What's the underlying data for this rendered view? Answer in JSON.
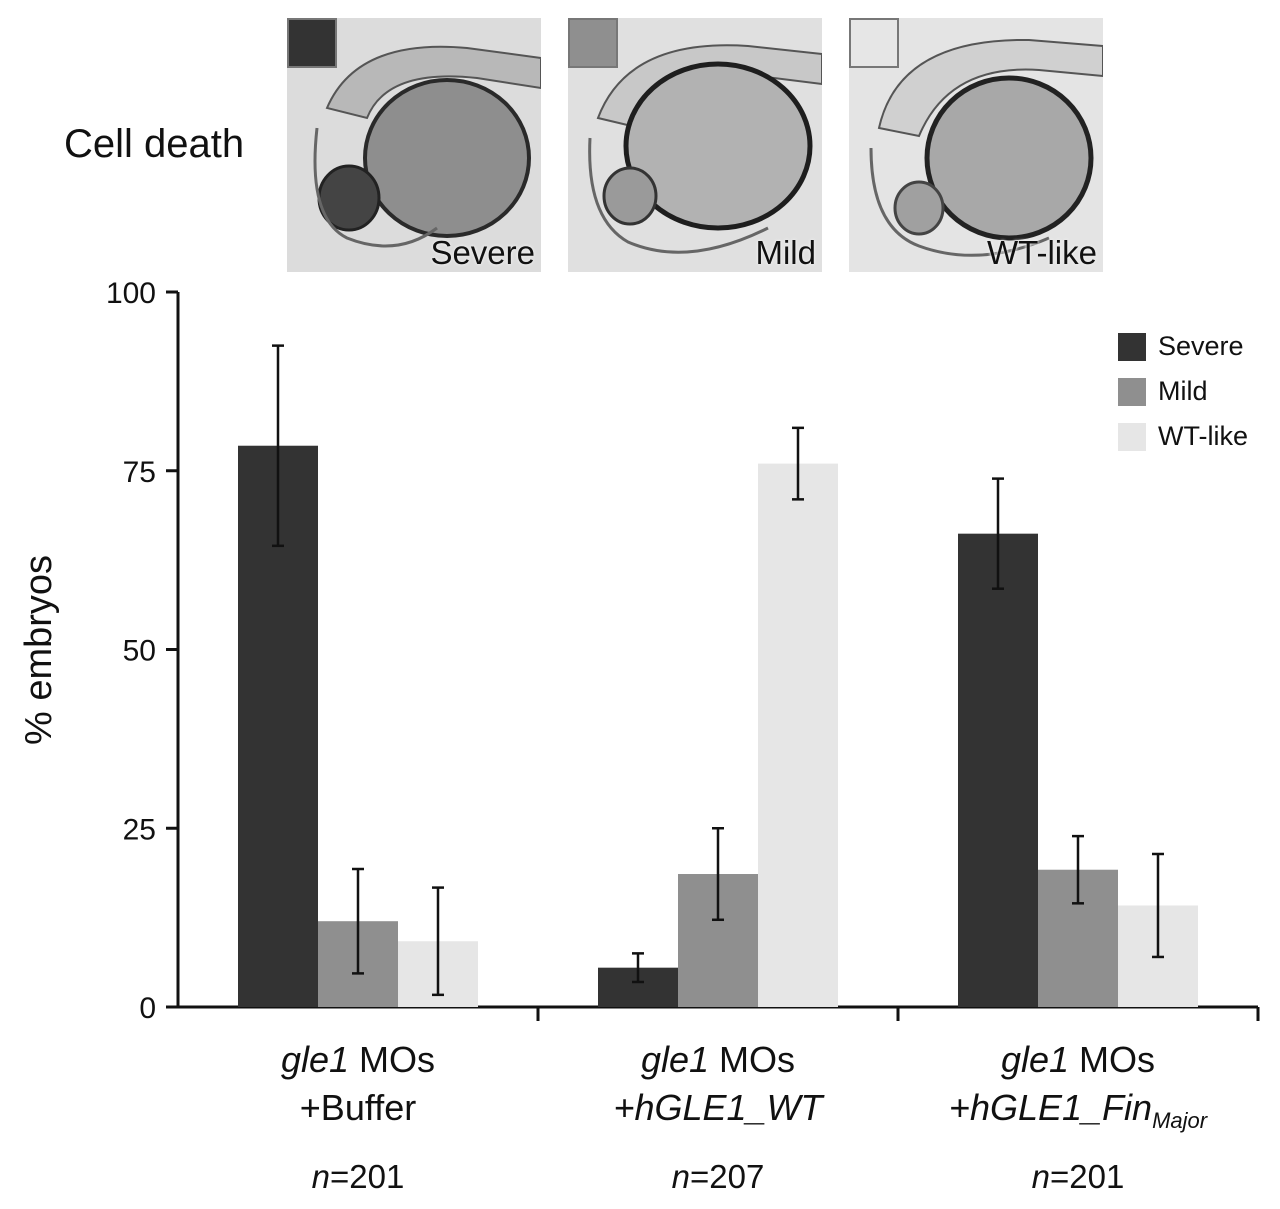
{
  "header": {
    "label": "Cell death"
  },
  "panels": [
    {
      "label": "Severe",
      "swatch": "#333333"
    },
    {
      "label": "Mild",
      "swatch": "#8f8f8f"
    },
    {
      "label": "WT-like",
      "swatch": "#e6e6e6"
    }
  ],
  "chart_data": {
    "type": "bar",
    "ylabel": "% embryos",
    "ylim": [
      0,
      100
    ],
    "yticks": [
      0,
      25,
      50,
      75,
      100
    ],
    "groups": [
      {
        "gene": "gle1",
        "mo": "MOs",
        "treatment": "+Buffer",
        "treatment_sub": "",
        "n_prefix": "n",
        "n_value": "=201"
      },
      {
        "gene": "gle1",
        "mo": "MOs",
        "treatment": "+hGLE1_WT",
        "treatment_sub": "",
        "n_prefix": "n",
        "n_value": "=207"
      },
      {
        "gene": "gle1",
        "mo": "MOs",
        "treatment": "+hGLE1_Fin",
        "treatment_sub": "Major",
        "n_prefix": "n",
        "n_value": "=201"
      }
    ],
    "series": [
      {
        "name": "Severe",
        "color": "#333333",
        "values": [
          78.5,
          5.5,
          66.2
        ],
        "errors": [
          14,
          2,
          7.7
        ]
      },
      {
        "name": "Mild",
        "color": "#8f8f8f",
        "values": [
          12,
          18.6,
          19.2
        ],
        "errors": [
          7.3,
          6.4,
          4.7
        ]
      },
      {
        "name": "WT-like",
        "color": "#e6e6e6",
        "values": [
          9.2,
          76,
          14.2
        ],
        "errors": [
          7.5,
          5,
          7.2
        ]
      }
    ],
    "legend": "top-right",
    "grid": false
  }
}
